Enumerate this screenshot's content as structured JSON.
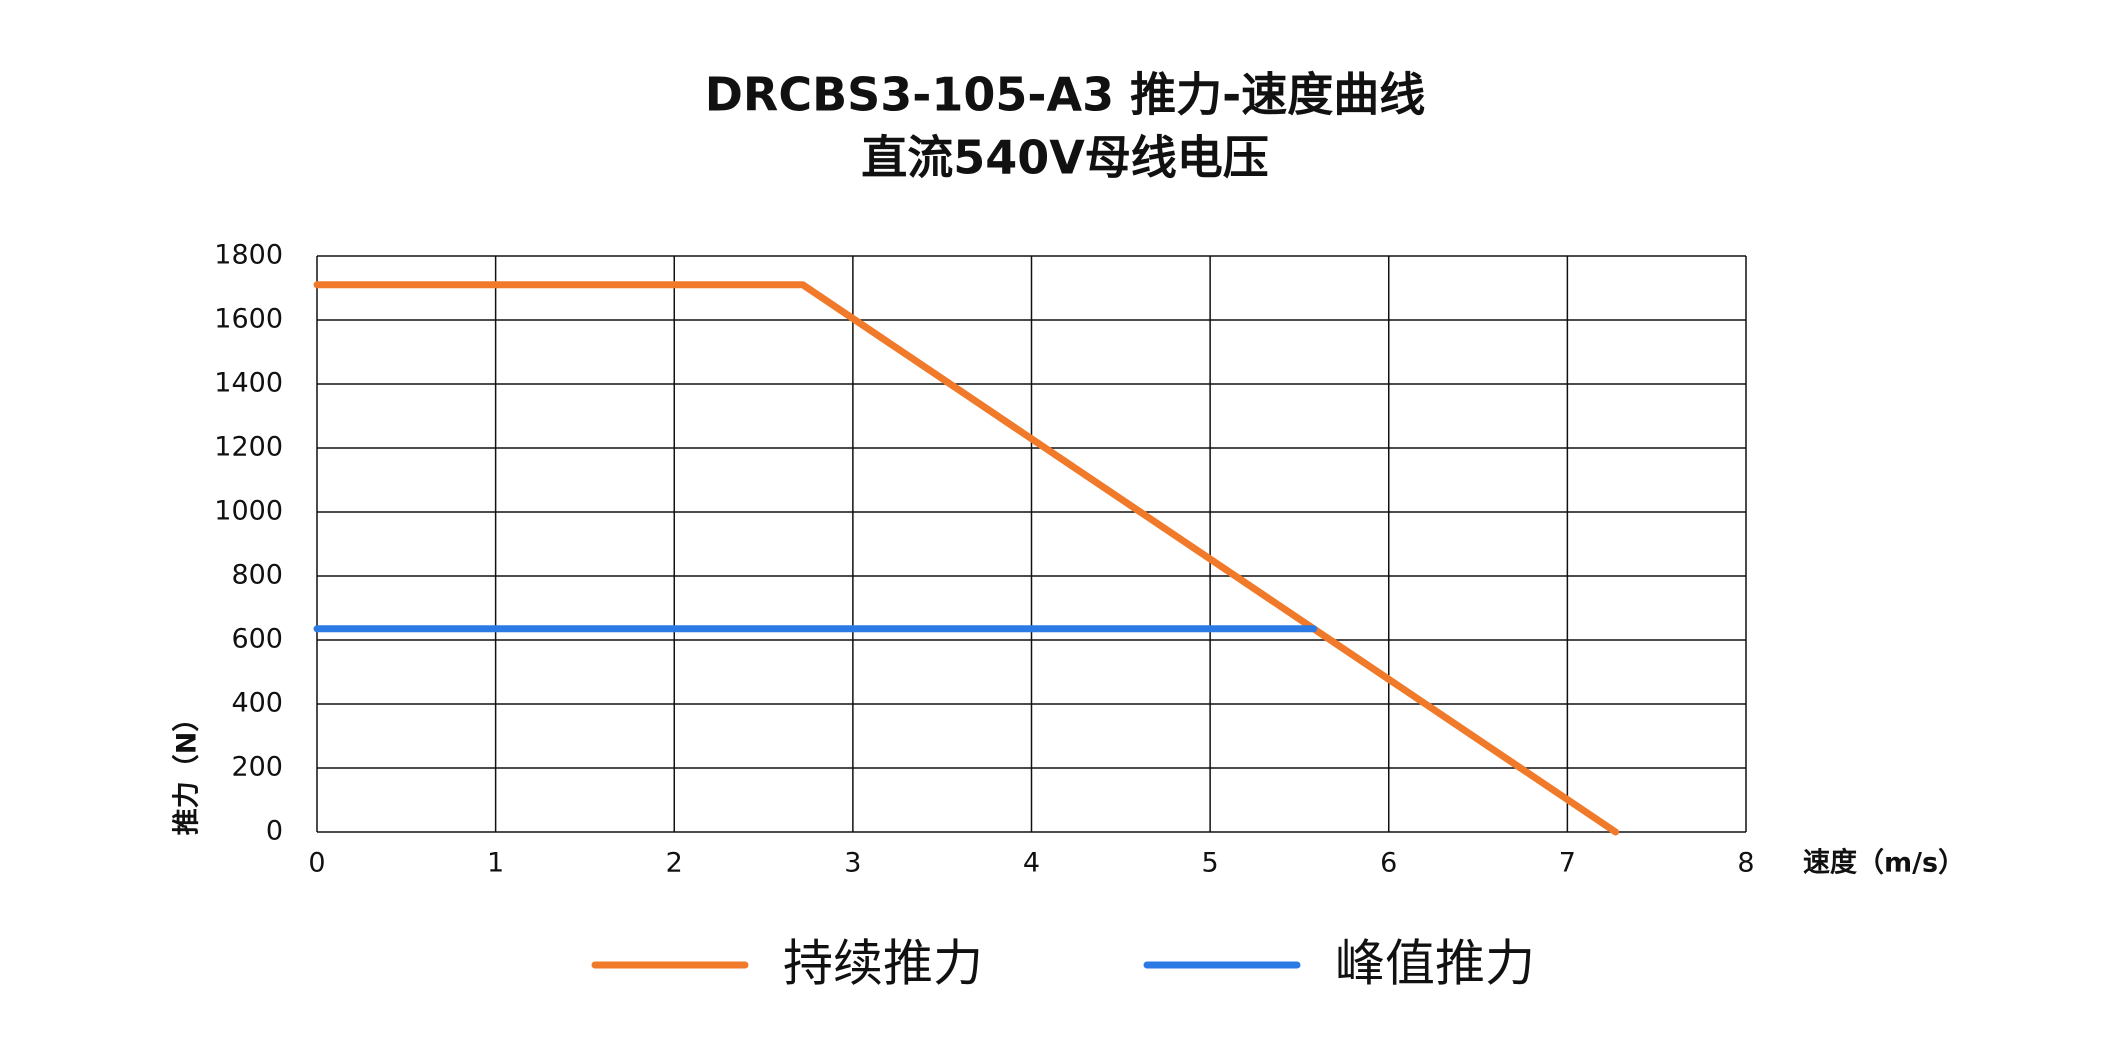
{
  "chart_data": {
    "type": "line",
    "title": "DRCBS3-105-A3 推力-速度曲线",
    "subtitle": "直流540V母线电压",
    "x_label": "速度（m/s）",
    "y_label": "推力（N）",
    "xlim": [
      0,
      8
    ],
    "xticks": [
      0,
      1,
      2,
      3,
      4,
      5,
      6,
      7,
      8
    ],
    "ylim": [
      0,
      1800
    ],
    "yticks": [
      0,
      200,
      400,
      600,
      800,
      1000,
      1200,
      1400,
      1600,
      1800
    ],
    "grid": true,
    "series": [
      {
        "name": "持续推力",
        "color": "#f07a2a",
        "x": [
          0,
          2.72,
          7.27
        ],
        "values": [
          1710,
          1710,
          0
        ]
      },
      {
        "name": "峰值推力",
        "color": "#2c7be5",
        "x": [
          0,
          5.58
        ],
        "values": [
          635,
          635
        ]
      }
    ]
  }
}
